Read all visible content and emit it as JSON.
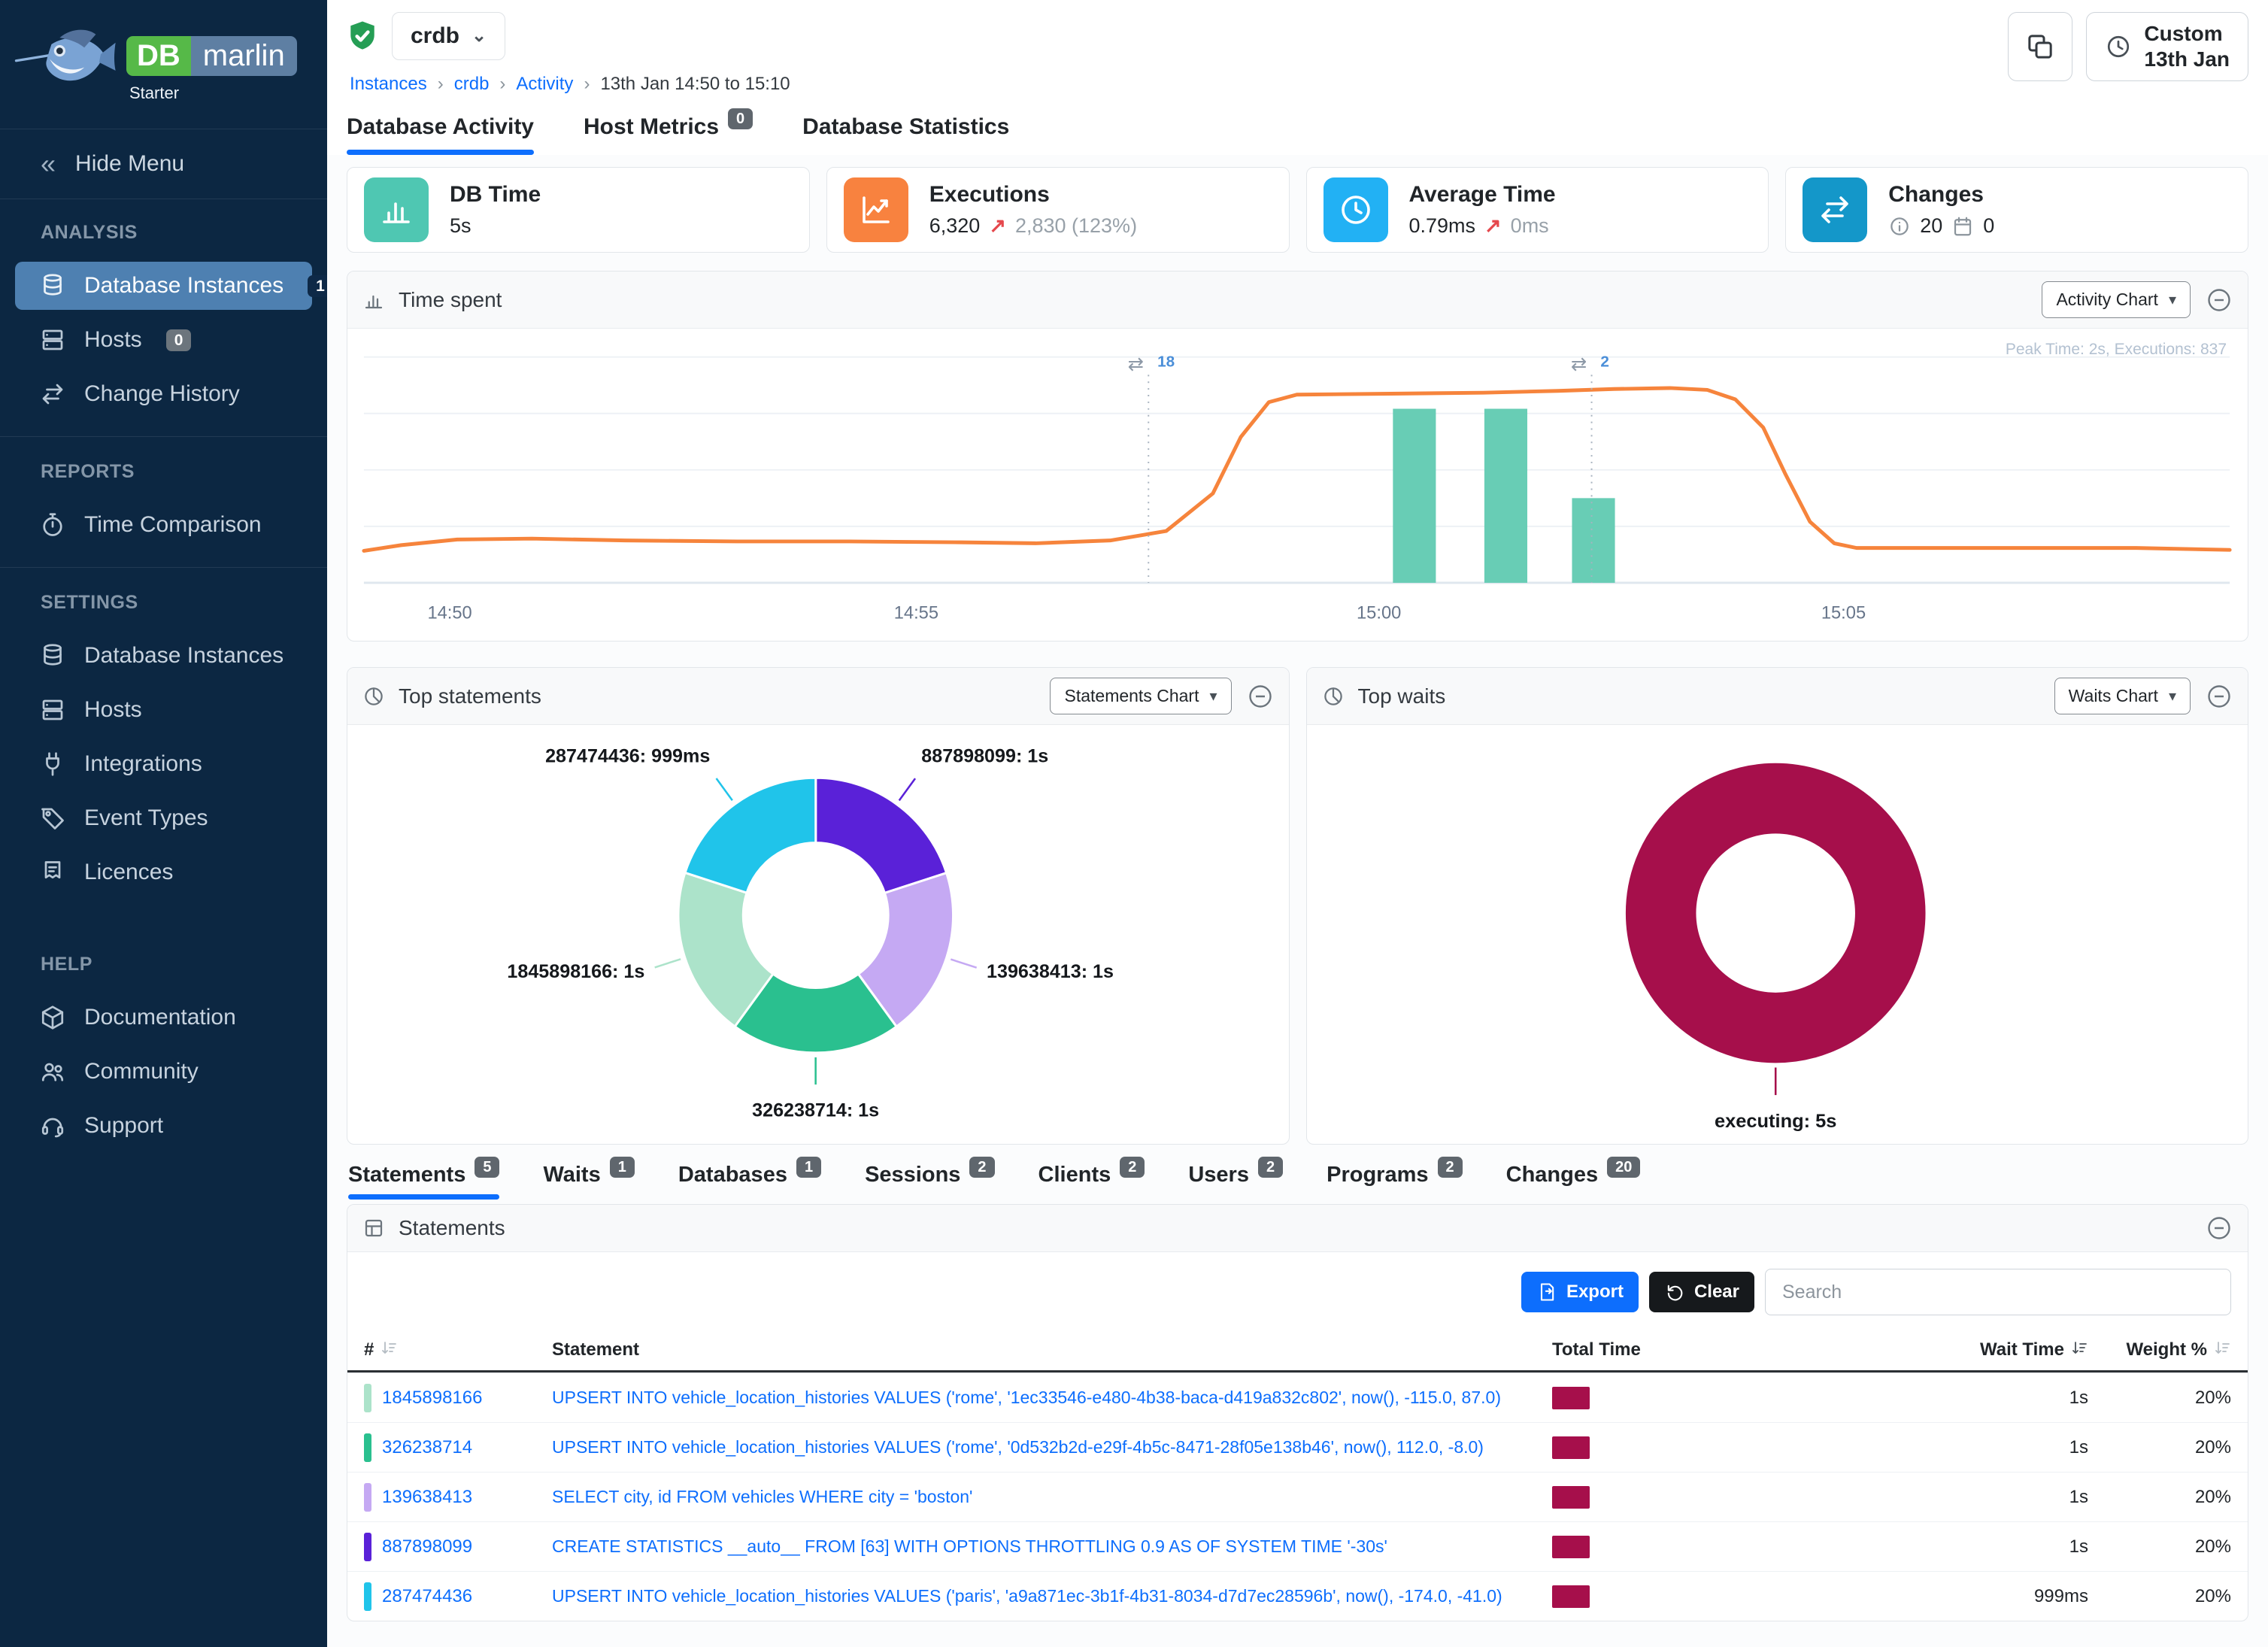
{
  "sidebar": {
    "logo_db": "DB",
    "logo_marlin": "marlin",
    "edition": "Starter",
    "hide_menu": "Hide Menu",
    "sections": [
      {
        "label": "ANALYSIS",
        "divider": false,
        "items": [
          {
            "label": "Database Instances",
            "icon": "database",
            "badge": "1",
            "badge_style": "dark",
            "active": true
          },
          {
            "label": "Hosts",
            "icon": "server",
            "badge": "0",
            "badge_style": ""
          },
          {
            "label": "Change History",
            "icon": "swap"
          }
        ]
      },
      {
        "label": "REPORTS",
        "divider": true,
        "items": [
          {
            "label": "Time Comparison",
            "icon": "stopwatch"
          }
        ]
      },
      {
        "label": "SETTINGS",
        "divider": true,
        "items": [
          {
            "label": "Database Instances",
            "icon": "database"
          },
          {
            "label": "Hosts",
            "icon": "server"
          },
          {
            "label": "Integrations",
            "icon": "plug"
          },
          {
            "label": "Event Types",
            "icon": "tag"
          },
          {
            "label": "Licences",
            "icon": "certificate"
          }
        ]
      },
      {
        "label": "HELP",
        "divider": false,
        "gap": true,
        "items": [
          {
            "label": "Documentation",
            "icon": "box"
          },
          {
            "label": "Community",
            "icon": "people"
          },
          {
            "label": "Support",
            "icon": "headset"
          }
        ]
      }
    ]
  },
  "header": {
    "instance": "crdb",
    "breadcrumbs": [
      "Instances",
      "crdb",
      "Activity",
      "13th Jan 14:50 to 15:10"
    ],
    "time_button": {
      "line1": "Custom",
      "line2": "13th Jan"
    }
  },
  "tabs_top": [
    {
      "label": "Database Activity",
      "active": true
    },
    {
      "label": "Host Metrics",
      "badge": "0"
    },
    {
      "label": "Database Statistics"
    }
  ],
  "kpis": [
    {
      "title": "DB Time",
      "icon": "barchart",
      "icon_bg": "#4fc7b2",
      "segments": [
        {
          "text": "5s"
        }
      ]
    },
    {
      "title": "Executions",
      "icon": "trend",
      "icon_bg": "#f8823f",
      "segments": [
        {
          "text": "6,320"
        },
        {
          "text": "↗",
          "style": "up"
        },
        {
          "text": "2,830 (123%)",
          "style": "muted"
        }
      ]
    },
    {
      "title": "Average Time",
      "icon": "clock",
      "icon_bg": "#22b1f4",
      "segments": [
        {
          "text": "0.79ms"
        },
        {
          "text": "↗",
          "style": "up"
        },
        {
          "text": "0ms",
          "style": "muted"
        }
      ]
    },
    {
      "title": "Changes",
      "icon": "swap",
      "icon_bg": "#1497c9",
      "segments": [
        {
          "icon": "info"
        },
        {
          "text": "20"
        },
        {
          "icon": "calendar"
        },
        {
          "text": "0"
        }
      ]
    }
  ],
  "panels": {
    "time_spent": {
      "title": "Time spent",
      "chart_button": "Activity Chart"
    },
    "top_statements": {
      "title": "Top statements",
      "chart_button": "Statements Chart"
    },
    "top_waits": {
      "title": "Top waits",
      "chart_button": "Waits Chart"
    },
    "statements": {
      "title": "Statements",
      "export_label": "Export",
      "clear_label": "Clear",
      "search_placeholder": "Search"
    }
  },
  "tabs_bottom": [
    {
      "label": "Statements",
      "badge": "5",
      "active": true
    },
    {
      "label": "Waits",
      "badge": "1"
    },
    {
      "label": "Databases",
      "badge": "1"
    },
    {
      "label": "Sessions",
      "badge": "2"
    },
    {
      "label": "Clients",
      "badge": "2"
    },
    {
      "label": "Users",
      "badge": "2"
    },
    {
      "label": "Programs",
      "badge": "2"
    },
    {
      "label": "Changes",
      "badge": "20"
    }
  ],
  "statements_table": {
    "columns": [
      {
        "label": "#",
        "sort": "inactive",
        "align": "left"
      },
      {
        "label": "Statement",
        "align": "left"
      },
      {
        "label": "Total Time",
        "align": "left"
      },
      {
        "label": "Wait Time",
        "sort": "active",
        "align": "right"
      },
      {
        "label": "Weight %",
        "sort": "inactive",
        "align": "right"
      }
    ],
    "rows": [
      {
        "id": "1845898166",
        "chip_color": "#ace3ca",
        "statement": "UPSERT INTO vehicle_location_histories VALUES ('rome', '1ec33546-e480-4b38-baca-d419a832c802', now(), -115.0, 87.0)",
        "total_bar": 1.0,
        "wait_time": "1s",
        "weight": "20%"
      },
      {
        "id": "326238714",
        "chip_color": "#2ac08f",
        "statement": "UPSERT INTO vehicle_location_histories VALUES ('rome', '0d532b2d-e29f-4b5c-8471-28f05e138b46', now(), 112.0, -8.0)",
        "total_bar": 1.0,
        "wait_time": "1s",
        "weight": "20%"
      },
      {
        "id": "139638413",
        "chip_color": "#c5a9f3",
        "statement": "SELECT city, id FROM vehicles WHERE city = 'boston'",
        "total_bar": 1.0,
        "wait_time": "1s",
        "weight": "20%"
      },
      {
        "id": "887898099",
        "chip_color": "#5a21d8",
        "statement": "CREATE STATISTICS __auto__ FROM [63] WITH OPTIONS THROTTLING 0.9 AS OF SYSTEM TIME '-30s'",
        "total_bar": 1.0,
        "wait_time": "1s",
        "weight": "20%"
      },
      {
        "id": "287474436",
        "chip_color": "#20c4ea",
        "statement": "UPSERT INTO vehicle_location_histories VALUES ('paris', 'a9a871ec-3b1f-4b31-8034-d7d7ec28596b', now(), -174.0, -41.0)",
        "total_bar": 0.999,
        "wait_time": "999ms",
        "weight": "20%"
      }
    ]
  },
  "chart_data": [
    {
      "type": "line",
      "title": "Time spent",
      "note": "Peak Time: 2s, Executions: 837",
      "y_unit": "seconds",
      "ylim": [
        0,
        2.4
      ],
      "x_ticks": [
        {
          "label": "14:50",
          "f": 0.046
        },
        {
          "label": "14:55",
          "f": 0.296
        },
        {
          "label": "15:00",
          "f": 0.544
        },
        {
          "label": "15:05",
          "f": 0.793
        }
      ],
      "line": {
        "name": "DB Time",
        "color": "#f6843c",
        "points": [
          [
            0,
            0.34
          ],
          [
            0.02,
            0.4
          ],
          [
            0.05,
            0.46
          ],
          [
            0.09,
            0.47
          ],
          [
            0.14,
            0.45
          ],
          [
            0.2,
            0.44
          ],
          [
            0.26,
            0.44
          ],
          [
            0.32,
            0.43
          ],
          [
            0.36,
            0.42
          ],
          [
            0.4,
            0.45
          ],
          [
            0.43,
            0.55
          ],
          [
            0.455,
            0.95
          ],
          [
            0.47,
            1.55
          ],
          [
            0.485,
            1.92
          ],
          [
            0.5,
            2.0
          ],
          [
            0.55,
            2.01
          ],
          [
            0.6,
            2.02
          ],
          [
            0.64,
            2.04
          ],
          [
            0.67,
            2.06
          ],
          [
            0.7,
            2.07
          ],
          [
            0.72,
            2.05
          ],
          [
            0.735,
            1.95
          ],
          [
            0.75,
            1.65
          ],
          [
            0.762,
            1.15
          ],
          [
            0.775,
            0.65
          ],
          [
            0.788,
            0.42
          ],
          [
            0.8,
            0.37
          ],
          [
            0.85,
            0.37
          ],
          [
            0.9,
            0.37
          ],
          [
            0.95,
            0.37
          ],
          [
            1,
            0.35
          ]
        ]
      },
      "bars": {
        "name": "Executions",
        "color": "#68cdb5",
        "width_f": 0.023,
        "items": [
          {
            "f": 0.563,
            "value": 1.85
          },
          {
            "f": 0.612,
            "value": 1.85
          },
          {
            "f": 0.659,
            "value": 0.9
          }
        ]
      },
      "change_markers": [
        {
          "f": 0.4205,
          "label": "18"
        },
        {
          "f": 0.658,
          "label": "2"
        }
      ]
    },
    {
      "type": "donut",
      "title": "Top statements",
      "slices": [
        {
          "label": "887898099",
          "value": 1.0,
          "value_label": "1s",
          "color": "#5a21d8"
        },
        {
          "label": "139638413",
          "value": 1.0,
          "value_label": "1s",
          "color": "#c5a9f3"
        },
        {
          "label": "326238714",
          "value": 1.0,
          "value_label": "1s",
          "color": "#2ac08f"
        },
        {
          "label": "1845898166",
          "value": 1.0,
          "value_label": "1s",
          "color": "#ace3ca"
        },
        {
          "label": "287474436",
          "value": 0.999,
          "value_label": "999ms",
          "color": "#20c4ea"
        }
      ]
    },
    {
      "type": "donut",
      "title": "Top waits",
      "slices": [
        {
          "label": "executing",
          "value": 5,
          "value_label": "5s",
          "color": "#a60f4b"
        }
      ]
    }
  ]
}
